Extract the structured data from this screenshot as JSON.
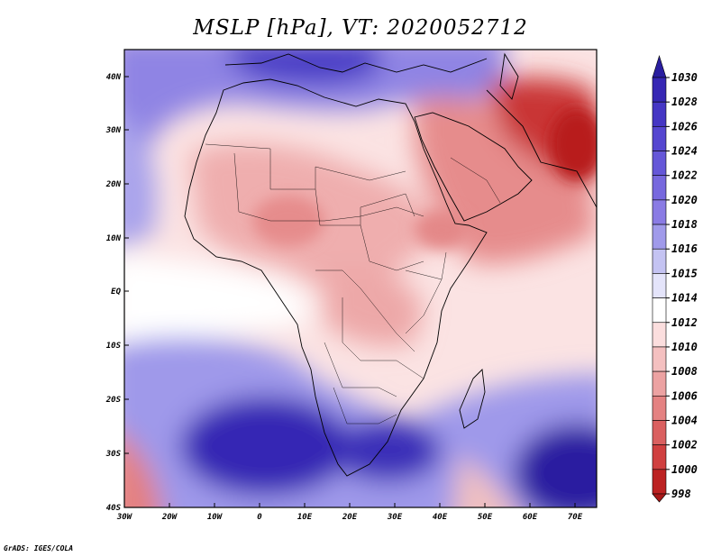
{
  "title": "MSLP [hPa], VT: 2020052712",
  "footer": "GrADS: IGES/COLA",
  "map": {
    "region": "Africa and Middle East",
    "lon_range": [
      -30,
      75
    ],
    "lat_range": [
      -40,
      45
    ],
    "x_ticks": [
      "30W",
      "20W",
      "10W",
      "0",
      "10E",
      "20E",
      "30E",
      "40E",
      "50E",
      "60E",
      "70E"
    ],
    "y_ticks": [
      "40N",
      "30N",
      "20N",
      "10N",
      "EQ",
      "10S",
      "20S",
      "30S",
      "40S"
    ]
  },
  "colorbar": {
    "unit": "hPa",
    "labels": [
      "1030",
      "1028",
      "1026",
      "1024",
      "1022",
      "1020",
      "1018",
      "1016",
      "1015",
      "1014",
      "1012",
      "1010",
      "1008",
      "1006",
      "1004",
      "1002",
      "1000",
      "998"
    ],
    "colors": [
      "#2a1ea0",
      "#3627b4",
      "#4536c4",
      "#5546d0",
      "#6557d8",
      "#7768de",
      "#8a7be4",
      "#a09aea",
      "#c4c3f2",
      "#e4e4fa",
      "#ffffff",
      "#fbdede",
      "#f4c0c0",
      "#eca2a2",
      "#e48282",
      "#da6060",
      "#d04040",
      "#bc2222",
      "#a81818"
    ]
  },
  "chart_data": {
    "type": "heatmap",
    "title": "MSLP [hPa], VT: 2020052712",
    "variable": "Mean sea level pressure",
    "valid_time": "2020052712",
    "levels": [
      998,
      1000,
      1002,
      1004,
      1006,
      1008,
      1010,
      1012,
      1014,
      1015,
      1016,
      1018,
      1020,
      1022,
      1024,
      1026,
      1028,
      1030
    ],
    "features": [
      {
        "name": "South Atlantic high",
        "lon": -2,
        "lat": -30,
        "value": 1030
      },
      {
        "name": "Southwest Indian Ocean high",
        "lon": 73,
        "lat": -33,
        "value": 1030
      },
      {
        "name": "Mediterranean / Southern Europe high",
        "lon": 18,
        "lat": 42,
        "value": 1026
      },
      {
        "name": "South Africa high",
        "lon": 28,
        "lat": -30,
        "value": 1028
      },
      {
        "name": "Arabian / Iranian low",
        "lon": 65,
        "lat": 27,
        "value": 998
      },
      {
        "name": "Sahel heat low",
        "lon": 15,
        "lat": 15,
        "value": 1008
      },
      {
        "name": "Southwest Atlantic low",
        "lon": -29,
        "lat": -38,
        "value": 1004
      }
    ]
  }
}
